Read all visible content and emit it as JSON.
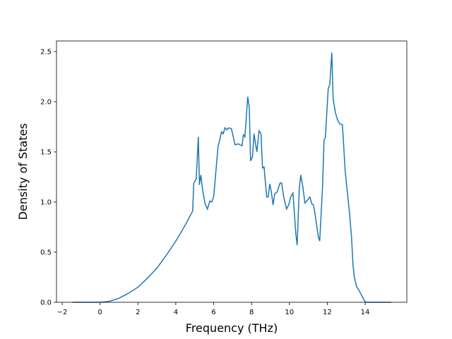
{
  "chart_data": {
    "type": "line",
    "x_label": "Frequency (THz)",
    "y_label": "Density of States",
    "xlim": [
      -2.3,
      16.2
    ],
    "ylim": [
      0,
      2.606
    ],
    "xticks": [
      {
        "value": -2,
        "label": "−2"
      },
      0,
      2,
      4,
      6,
      8,
      10,
      12,
      14
    ],
    "yticks": [
      {
        "value": 0,
        "label": "0.0"
      },
      0.5,
      {
        "value": 1,
        "label": "1.0"
      },
      1.5,
      {
        "value": 2,
        "label": "2.0"
      },
      2.5
    ],
    "series": [
      {
        "name": null,
        "color": "#1f77b4",
        "x": [
          -1.46,
          0,
          0.5,
          1,
          1.5,
          2,
          2.5,
          3,
          3.5,
          4,
          4.5,
          4.89,
          4.95,
          5.08,
          5.19,
          5.25,
          5.32,
          5.42,
          5.55,
          5.67,
          5.8,
          5.9,
          6.0,
          6.23,
          6.42,
          6.5,
          6.6,
          6.7,
          6.8,
          6.94,
          7.13,
          7.3,
          7.5,
          7.57,
          7.65,
          7.8,
          7.88,
          7.95,
          8.05,
          8.13,
          8.28,
          8.4,
          8.5,
          8.58,
          8.66,
          8.8,
          8.88,
          8.96,
          9.03,
          9.14,
          9.22,
          9.35,
          9.51,
          9.59,
          9.7,
          9.85,
          9.96,
          10.07,
          10.19,
          10.34,
          10.41,
          10.52,
          10.6,
          10.71,
          10.82,
          11.0,
          11.08,
          11.19,
          11.27,
          11.34,
          11.46,
          11.53,
          11.6,
          11.68,
          11.75,
          11.83,
          11.9,
          11.98,
          12.05,
          12.13,
          12.24,
          12.31,
          12.43,
          12.54,
          12.65,
          12.8,
          12.87,
          12.95,
          13.06,
          13.17,
          13.28,
          13.36,
          13.43,
          13.54,
          13.73,
          13.92,
          14.03,
          15.37
        ],
        "values": [
          0,
          0,
          0.01,
          0.04,
          0.09,
          0.15,
          0.24,
          0.34,
          0.47,
          0.61,
          0.77,
          0.91,
          1.19,
          1.23,
          1.65,
          1.17,
          1.27,
          1.12,
          0.98,
          0.93,
          1.01,
          1.0,
          1.05,
          1.55,
          1.7,
          1.68,
          1.74,
          1.72,
          1.74,
          1.73,
          1.57,
          1.58,
          1.56,
          1.67,
          1.65,
          2.05,
          1.95,
          1.41,
          1.45,
          1.68,
          1.5,
          1.71,
          1.68,
          1.34,
          1.35,
          1.05,
          1.05,
          1.18,
          1.12,
          0.97,
          1.08,
          1.1,
          1.19,
          1.19,
          1.05,
          0.93,
          0.97,
          1.05,
          1.09,
          0.68,
          0.57,
          1.13,
          1.27,
          1.15,
          0.99,
          1.03,
          1.05,
          0.98,
          0.97,
          0.9,
          0.74,
          0.65,
          0.61,
          0.9,
          1.15,
          1.62,
          1.64,
          1.9,
          2.13,
          2.17,
          2.49,
          2.03,
          1.89,
          1.82,
          1.78,
          1.77,
          1.55,
          1.3,
          1.1,
          0.9,
          0.65,
          0.37,
          0.25,
          0.16,
          0.1,
          0.03,
          0,
          0
        ]
      }
    ]
  }
}
